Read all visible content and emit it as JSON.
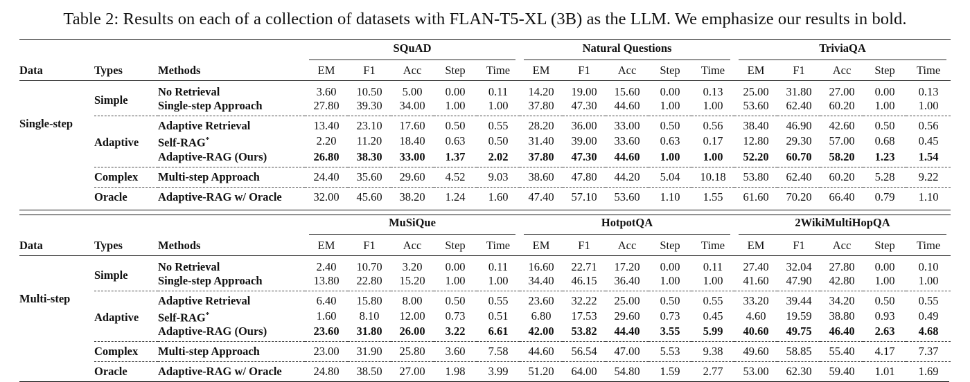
{
  "caption": "Table 2: Results on each of a collection of datasets with FLAN-T5-XL (3B) as the LLM. We emphasize our results in bold.",
  "headers": {
    "data": "Data",
    "types": "Types",
    "methods": "Methods",
    "metrics": [
      "EM",
      "F1",
      "Acc",
      "Step",
      "Time"
    ]
  },
  "blocks": [
    {
      "data_label": "Single-step",
      "datasets": [
        "SQuAD",
        "Natural Questions",
        "TriviaQA"
      ],
      "groups": [
        {
          "type": "Simple",
          "rows": [
            {
              "method": "No Retrieval",
              "bold": false,
              "values": [
                "3.60",
                "10.50",
                "5.00",
                "0.00",
                "0.11",
                "14.20",
                "19.00",
                "15.60",
                "0.00",
                "0.13",
                "25.00",
                "31.80",
                "27.00",
                "0.00",
                "0.13"
              ]
            },
            {
              "method": "Single-step Approach",
              "bold": false,
              "values": [
                "27.80",
                "39.30",
                "34.00",
                "1.00",
                "1.00",
                "37.80",
                "47.30",
                "44.60",
                "1.00",
                "1.00",
                "53.60",
                "62.40",
                "60.20",
                "1.00",
                "1.00"
              ]
            }
          ]
        },
        {
          "type": "Adaptive",
          "rows": [
            {
              "method": "Adaptive Retrieval",
              "bold": false,
              "values": [
                "13.40",
                "23.10",
                "17.60",
                "0.50",
                "0.55",
                "28.20",
                "36.00",
                "33.00",
                "0.50",
                "0.56",
                "38.40",
                "46.90",
                "42.60",
                "0.50",
                "0.56"
              ]
            },
            {
              "method": "Self-RAG*",
              "bold": false,
              "values": [
                "2.20",
                "11.20",
                "18.40",
                "0.63",
                "0.50",
                "31.40",
                "39.00",
                "33.60",
                "0.63",
                "0.17",
                "12.80",
                "29.30",
                "57.00",
                "0.68",
                "0.45"
              ]
            },
            {
              "method": "Adaptive-RAG (Ours)",
              "bold": true,
              "values": [
                "26.80",
                "38.30",
                "33.00",
                "1.37",
                "2.02",
                "37.80",
                "47.30",
                "44.60",
                "1.00",
                "1.00",
                "52.20",
                "60.70",
                "58.20",
                "1.23",
                "1.54"
              ]
            }
          ]
        },
        {
          "type": "Complex",
          "rows": [
            {
              "method": "Multi-step Approach",
              "bold": false,
              "values": [
                "24.40",
                "35.60",
                "29.60",
                "4.52",
                "9.03",
                "38.60",
                "47.80",
                "44.20",
                "5.04",
                "10.18",
                "53.80",
                "62.40",
                "60.20",
                "5.28",
                "9.22"
              ]
            }
          ]
        },
        {
          "type": "Oracle",
          "rows": [
            {
              "method": "Adaptive-RAG w/ Oracle",
              "bold": false,
              "values": [
                "32.00",
                "45.60",
                "38.20",
                "1.24",
                "1.60",
                "47.40",
                "57.10",
                "53.60",
                "1.10",
                "1.55",
                "61.60",
                "70.20",
                "66.40",
                "0.79",
                "1.10"
              ]
            }
          ]
        }
      ]
    },
    {
      "data_label": "Multi-step",
      "datasets": [
        "MuSiQue",
        "HotpotQA",
        "2WikiMultiHopQA"
      ],
      "groups": [
        {
          "type": "Simple",
          "rows": [
            {
              "method": "No Retrieval",
              "bold": false,
              "values": [
                "2.40",
                "10.70",
                "3.20",
                "0.00",
                "0.11",
                "16.60",
                "22.71",
                "17.20",
                "0.00",
                "0.11",
                "27.40",
                "32.04",
                "27.80",
                "0.00",
                "0.10"
              ]
            },
            {
              "method": "Single-step Approach",
              "bold": false,
              "values": [
                "13.80",
                "22.80",
                "15.20",
                "1.00",
                "1.00",
                "34.40",
                "46.15",
                "36.40",
                "1.00",
                "1.00",
                "41.60",
                "47.90",
                "42.80",
                "1.00",
                "1.00"
              ]
            }
          ]
        },
        {
          "type": "Adaptive",
          "rows": [
            {
              "method": "Adaptive Retrieval",
              "bold": false,
              "values": [
                "6.40",
                "15.80",
                "8.00",
                "0.50",
                "0.55",
                "23.60",
                "32.22",
                "25.00",
                "0.50",
                "0.55",
                "33.20",
                "39.44",
                "34.20",
                "0.50",
                "0.55"
              ]
            },
            {
              "method": "Self-RAG*",
              "bold": false,
              "values": [
                "1.60",
                "8.10",
                "12.00",
                "0.73",
                "0.51",
                "6.80",
                "17.53",
                "29.60",
                "0.73",
                "0.45",
                "4.60",
                "19.59",
                "38.80",
                "0.93",
                "0.49"
              ]
            },
            {
              "method": "Adaptive-RAG (Ours)",
              "bold": true,
              "values": [
                "23.60",
                "31.80",
                "26.00",
                "3.22",
                "6.61",
                "42.00",
                "53.82",
                "44.40",
                "3.55",
                "5.99",
                "40.60",
                "49.75",
                "46.40",
                "2.63",
                "4.68"
              ]
            }
          ]
        },
        {
          "type": "Complex",
          "rows": [
            {
              "method": "Multi-step Approach",
              "bold": false,
              "values": [
                "23.00",
                "31.90",
                "25.80",
                "3.60",
                "7.58",
                "44.60",
                "56.54",
                "47.00",
                "5.53",
                "9.38",
                "49.60",
                "58.85",
                "55.40",
                "4.17",
                "7.37"
              ]
            }
          ]
        },
        {
          "type": "Oracle",
          "rows": [
            {
              "method": "Adaptive-RAG w/ Oracle",
              "bold": false,
              "values": [
                "24.80",
                "38.50",
                "27.00",
                "1.98",
                "3.99",
                "51.20",
                "64.00",
                "54.80",
                "1.59",
                "2.77",
                "53.00",
                "62.30",
                "59.40",
                "1.01",
                "1.69"
              ]
            }
          ]
        }
      ]
    }
  ]
}
